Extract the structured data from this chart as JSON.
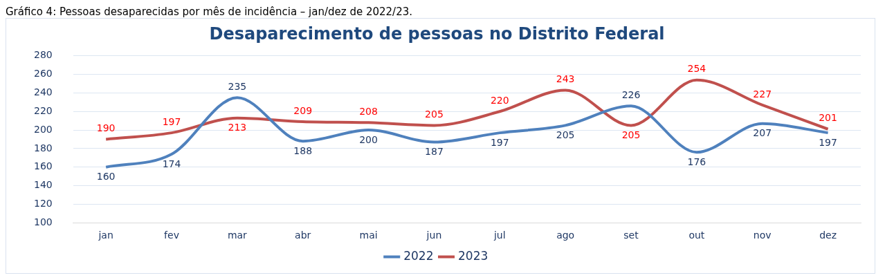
{
  "chart_data": {
    "type": "line",
    "title": "Desaparecimento de pessoas no Distrito Federal",
    "annotations": [
      "Gráfico 4: Pessoas desaparecidas por mês de incidência – jan/dez de 2022/23."
    ],
    "categories": [
      "jan",
      "fev",
      "mar",
      "abr",
      "mai",
      "jun",
      "jul",
      "ago",
      "set",
      "out",
      "nov",
      "dez"
    ],
    "series": [
      {
        "name": "2022",
        "color": "#4f81bd",
        "values": [
          160,
          174,
          235,
          188,
          200,
          187,
          197,
          205,
          226,
          176,
          207,
          197
        ]
      },
      {
        "name": "2023",
        "color": "#c0504d",
        "values": [
          190,
          197,
          213,
          209,
          208,
          205,
          220,
          243,
          205,
          254,
          227,
          201
        ]
      }
    ],
    "ylim": [
      100,
      280
    ],
    "yticks": [
      100,
      120,
      140,
      160,
      180,
      200,
      220,
      240,
      260,
      280
    ],
    "grid": "y",
    "legend": "bottom",
    "data_labels": true,
    "marker": "none",
    "line_style": "solid"
  }
}
